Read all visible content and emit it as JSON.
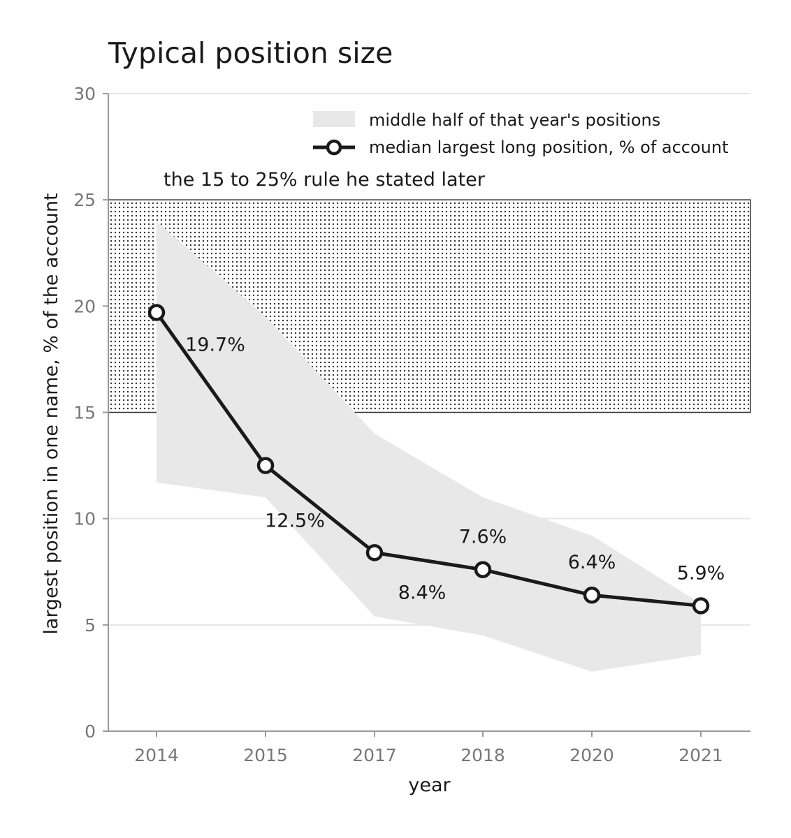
{
  "chart_data": {
    "type": "line",
    "title": "Typical position size",
    "xlabel": "year",
    "ylabel": "largest position in one name, % of the account",
    "categories": [
      "2014",
      "2015",
      "2017",
      "2018",
      "2020",
      "2021"
    ],
    "ylim": [
      0,
      30
    ],
    "yticks": [
      0,
      5,
      10,
      15,
      20,
      25,
      30
    ],
    "grid": "horizontal",
    "legend_position": "top-right",
    "series": [
      {
        "name": "median largest long position, % of account",
        "values": [
          19.7,
          12.5,
          8.4,
          7.6,
          6.4,
          5.9
        ],
        "labels": [
          "19.7%",
          "12.5%",
          "8.4%",
          "7.6%",
          "6.4%",
          "5.9%"
        ],
        "color": "#1a1a1a"
      }
    ],
    "range_band": {
      "name": "middle half of that year's positions",
      "upper": [
        24.0,
        19.5,
        14.0,
        11.0,
        9.2,
        6.0
      ],
      "lower": [
        11.7,
        11.0,
        5.4,
        4.5,
        2.8,
        3.6
      ],
      "color": "#e8e8e8"
    },
    "reference_band": {
      "label": "the 15 to 25% rule he stated later",
      "from": 15,
      "to": 25,
      "pattern": "dotted"
    }
  }
}
